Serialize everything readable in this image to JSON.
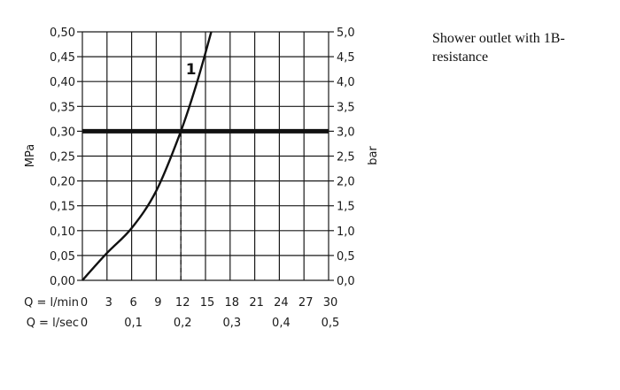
{
  "caption": "Shower outlet with 1B-resistance",
  "chart_data": {
    "type": "line",
    "title": "",
    "left_axis": {
      "label": "MPa",
      "range": [
        0,
        0.5
      ],
      "ticks": [
        "0,00",
        "0,05",
        "0,10",
        "0,15",
        "0,20",
        "0,25",
        "0,30",
        "0,35",
        "0,40",
        "0,45",
        "0,50"
      ]
    },
    "right_axis": {
      "label": "bar",
      "range": [
        0,
        5
      ],
      "ticks": [
        "0,0",
        "0,5",
        "1,0",
        "1,5",
        "2,0",
        "2,5",
        "3,0",
        "3,5",
        "4,0",
        "4,5",
        "5,0"
      ]
    },
    "x_axis_lmin": {
      "label": "Q = l/min",
      "range": [
        0,
        30
      ],
      "ticks": [
        "0",
        "3",
        "6",
        "9",
        "12",
        "15",
        "18",
        "21",
        "24",
        "27",
        "30"
      ]
    },
    "x_axis_lsec": {
      "label": "Q = l/sec",
      "ticks": [
        {
          "value": 0,
          "label": "0"
        },
        {
          "value": 6,
          "label": "0,1"
        },
        {
          "value": 12,
          "label": "0,2"
        },
        {
          "value": 18,
          "label": "0,3"
        },
        {
          "value": 24,
          "label": "0,4"
        },
        {
          "value": 30,
          "label": "0,5"
        }
      ]
    },
    "grid": true,
    "series": [
      {
        "name": "1",
        "x": [
          0,
          3,
          6,
          9,
          12,
          14,
          15.7
        ],
        "y": [
          0,
          0.055,
          0.105,
          0.18,
          0.3,
          0.4,
          0.5
        ]
      }
    ],
    "reference_line": {
      "y": 0.3
    },
    "marker_line": {
      "x": 12,
      "from_y": 0,
      "to_y": 0.3
    }
  }
}
